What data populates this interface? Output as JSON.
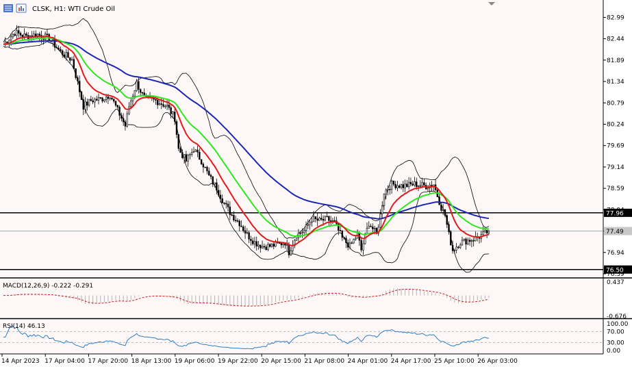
{
  "header": {
    "symbol_line": "CLSK, H1: WTI Crude Oil"
  },
  "toolbar": {
    "icons": [
      "chart-grid-icon",
      "chart-bars-icon"
    ]
  },
  "colors": {
    "background": "#fdf7f7",
    "ema_fast": "#e31a1a",
    "ema_mid": "#2ee81e",
    "ema_slow": "#1a26b4",
    "bollinger": "#000000",
    "candle": "#000000",
    "macd_hist": "#b4b4b4",
    "macd_signal": "#c81e1e",
    "rsi_line": "#2a7dc4",
    "level_line": "#000000"
  },
  "chart_data": [
    {
      "type": "candlestick",
      "panel": "price",
      "title": "CLSK, H1: WTI Crude Oil",
      "y_ticks": [
        "82.99",
        "82.44",
        "81.89",
        "81.34",
        "80.79",
        "80.24",
        "79.69",
        "79.14",
        "78.59",
        "78.04",
        "77.49",
        "76.94",
        "76.39"
      ],
      "ylim": [
        76.39,
        83.05
      ],
      "x_ticks": [
        "14 Apr 2023",
        "17 Apr 04:00",
        "17 Apr 20:00",
        "18 Apr 13:00",
        "19 Apr 06:00",
        "19 Apr 22:00",
        "20 Apr 15:00",
        "21 Apr 08:00",
        "24 Apr 01:00",
        "24 Apr 17:00",
        "25 Apr 10:00",
        "26 Apr 03:00"
      ],
      "horizontal_levels": [
        {
          "value": 77.96,
          "label": "77.96"
        },
        {
          "value": 76.5,
          "label": "76.50"
        }
      ],
      "current_price": {
        "value": 77.49,
        "label": "77.49"
      },
      "close_anchors": [
        [
          0,
          82.3
        ],
        [
          6,
          82.6
        ],
        [
          12,
          82.5
        ],
        [
          18,
          82.55
        ],
        [
          24,
          82.45
        ],
        [
          30,
          82.1
        ],
        [
          36,
          81.9
        ],
        [
          40,
          81.1
        ],
        [
          42,
          80.7
        ],
        [
          46,
          80.85
        ],
        [
          52,
          80.9
        ],
        [
          56,
          81.0
        ],
        [
          60,
          80.6
        ],
        [
          64,
          80.2
        ],
        [
          66,
          80.7
        ],
        [
          70,
          81.3
        ],
        [
          74,
          80.9
        ],
        [
          80,
          80.85
        ],
        [
          86,
          80.7
        ],
        [
          90,
          80.4
        ],
        [
          92,
          79.6
        ],
        [
          96,
          79.3
        ],
        [
          100,
          79.6
        ],
        [
          104,
          79.3
        ],
        [
          108,
          78.9
        ],
        [
          112,
          78.6
        ],
        [
          116,
          78.2
        ],
        [
          120,
          77.9
        ],
        [
          124,
          77.7
        ],
        [
          128,
          77.4
        ],
        [
          132,
          77.2
        ],
        [
          136,
          77.1
        ],
        [
          140,
          77.1
        ],
        [
          144,
          77.15
        ],
        [
          148,
          77.2
        ],
        [
          150,
          76.95
        ],
        [
          154,
          77.4
        ],
        [
          158,
          77.5
        ],
        [
          162,
          77.8
        ],
        [
          166,
          77.75
        ],
        [
          170,
          77.8
        ],
        [
          174,
          77.7
        ],
        [
          178,
          77.3
        ],
        [
          182,
          77.1
        ],
        [
          186,
          77.4
        ],
        [
          188,
          77.0
        ],
        [
          192,
          77.7
        ],
        [
          196,
          77.4
        ],
        [
          198,
          77.9
        ],
        [
          200,
          78.5
        ],
        [
          204,
          78.7
        ],
        [
          210,
          78.65
        ],
        [
          216,
          78.7
        ],
        [
          222,
          78.65
        ],
        [
          226,
          78.7
        ],
        [
          228,
          78.4
        ],
        [
          230,
          78.1
        ],
        [
          232,
          77.9
        ],
        [
          234,
          77.4
        ],
        [
          236,
          77.0
        ],
        [
          240,
          77.2
        ],
        [
          244,
          77.25
        ],
        [
          248,
          77.3
        ],
        [
          252,
          77.4
        ],
        [
          255,
          77.49
        ]
      ],
      "series": [
        {
          "name": "EMA fast",
          "color": "#e31a1a"
        },
        {
          "name": "EMA mid",
          "color": "#2ee81e"
        },
        {
          "name": "EMA slow",
          "color": "#1a26b4"
        },
        {
          "name": "Bollinger Bands",
          "color": "#000000"
        }
      ]
    },
    {
      "type": "bar",
      "panel": "macd",
      "label": "MACD(12,26,9) -0.222 -0.291",
      "y_ticks": [
        "0.437",
        "-0.676"
      ],
      "ylim": [
        -0.676,
        0.437
      ]
    },
    {
      "type": "line",
      "panel": "rsi",
      "label": "RSI(14) 46.13",
      "y_ticks": [
        "100.00",
        "70.00",
        "30.00",
        "0.00"
      ],
      "ylim": [
        0,
        100
      ],
      "levels": [
        70,
        30
      ],
      "current_value": 46.13
    }
  ]
}
